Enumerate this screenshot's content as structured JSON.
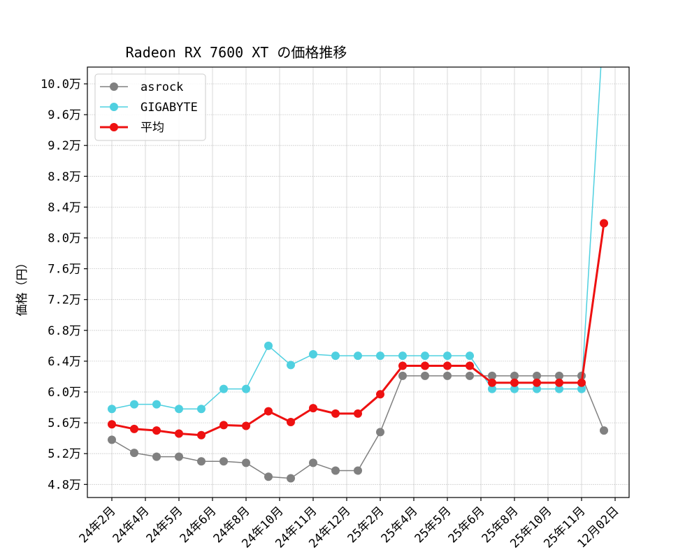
{
  "chart_data": {
    "type": "line",
    "title": "Radeon RX 7600 XT の価格推移",
    "xlabel": "",
    "ylabel": "価格（円）",
    "ylim": [
      4.65,
      10.2
    ],
    "y_unit": "万",
    "yticks": [
      "4.8万",
      "5.2万",
      "5.6万",
      "6.0万",
      "6.4万",
      "6.8万",
      "7.2万",
      "7.6万",
      "8.0万",
      "8.4万",
      "8.8万",
      "9.2万",
      "9.6万",
      "10.0万"
    ],
    "ytick_values": [
      4.8,
      5.2,
      5.6,
      6.0,
      6.4,
      6.8,
      7.2,
      7.6,
      8.0,
      8.4,
      8.8,
      9.2,
      9.6,
      10.0
    ],
    "xtick_labels": [
      "24年2月",
      "24年4月",
      "24年5月",
      "24年6月",
      "24年8月",
      "24年10月",
      "24年11月",
      "24年12月",
      "25年2月",
      "25年4月",
      "25年5月",
      "25年6月",
      "25年8月",
      "25年10月",
      "25年11月",
      "12月02日"
    ],
    "grid": true,
    "legend_position": "upper left",
    "point_count": 23,
    "series": [
      {
        "name": "asrock",
        "color": "#808080",
        "values": [
          5.38,
          5.21,
          5.16,
          5.16,
          5.1,
          5.1,
          5.08,
          4.9,
          4.88,
          5.08,
          4.98,
          4.98,
          5.48,
          6.21,
          6.21,
          6.21,
          6.21,
          6.21,
          6.21,
          6.21,
          6.21,
          6.21,
          5.5
        ]
      },
      {
        "name": "GIGABYTE",
        "color": "#4fd0e0",
        "values": [
          5.78,
          5.84,
          5.84,
          5.78,
          5.78,
          6.04,
          6.04,
          6.6,
          6.35,
          6.49,
          6.47,
          6.47,
          6.47,
          6.47,
          6.47,
          6.47,
          6.47,
          6.04,
          6.04,
          6.04,
          6.04,
          6.04,
          10.88
        ]
      },
      {
        "name": "平均",
        "color": "#ee1111",
        "values": [
          5.58,
          5.52,
          5.5,
          5.46,
          5.44,
          5.57,
          5.56,
          5.75,
          5.61,
          5.79,
          5.72,
          5.72,
          5.97,
          6.34,
          6.34,
          6.34,
          6.34,
          6.12,
          6.12,
          6.12,
          6.12,
          6.12,
          8.19
        ]
      }
    ]
  }
}
